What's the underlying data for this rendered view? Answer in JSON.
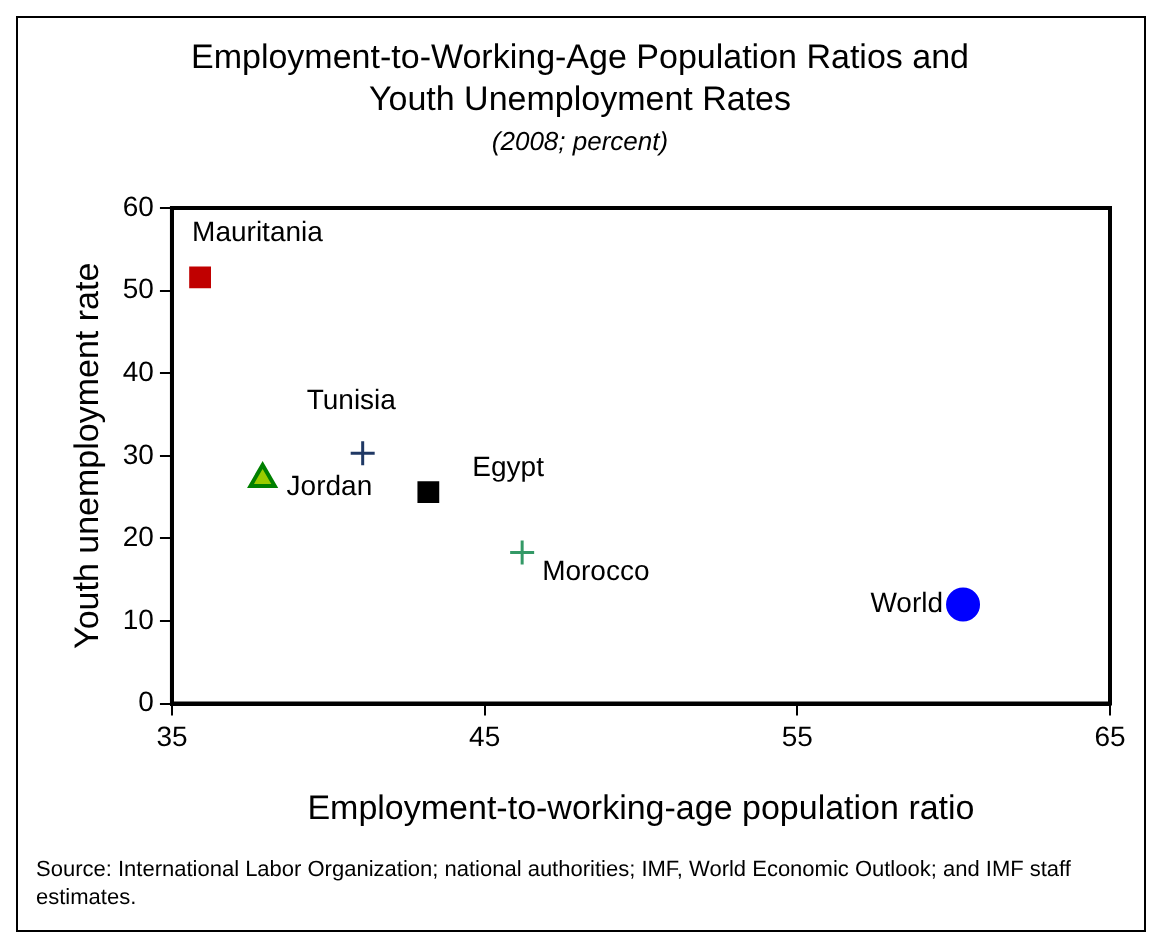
{
  "chart_data": {
    "type": "scatter",
    "title": "Employment-to-Working-Age Population Ratios and Youth Unemployment Rates",
    "subtitle": "(2008; percent)",
    "xlabel": "Employment-to-working-age population ratio",
    "ylabel": "Youth unemployment rate",
    "xlim": [
      35,
      65
    ],
    "xticks": [
      35,
      45,
      55,
      65
    ],
    "ylim": [
      0,
      60
    ],
    "yticks": [
      0,
      10,
      20,
      30,
      40,
      50,
      60
    ],
    "grid": false,
    "legend": false,
    "series": [
      {
        "name": "Mauritania",
        "color": "#c00000",
        "marker": "square",
        "x": [
          35.9
        ],
        "values": [
          51.6
        ]
      },
      {
        "name": "Tunisia",
        "color": "#1f3864",
        "marker": "cross",
        "x": [
          41.1
        ],
        "values": [
          30.3
        ]
      },
      {
        "name": "Jordan",
        "color": "#99cc00",
        "marker": "triangle",
        "x": [
          37.9
        ],
        "values": [
          27.2
        ]
      },
      {
        "name": "Egypt",
        "color": "#000000",
        "marker": "square",
        "x": [
          43.2
        ],
        "values": [
          25.6
        ]
      },
      {
        "name": "Morocco",
        "color": "#339966",
        "marker": "cross",
        "x": [
          46.2
        ],
        "values": [
          18.3
        ]
      },
      {
        "name": "World",
        "color": "#0000ff",
        "marker": "circle",
        "x": [
          60.3
        ],
        "values": [
          12.0
        ]
      }
    ],
    "annotations": [
      "Source: International Labor Organization; national authorities; IMF, World Economic Outlook; and IMF staff estimates."
    ]
  }
}
